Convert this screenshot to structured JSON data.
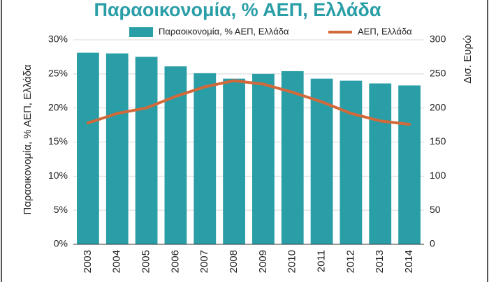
{
  "chart_data": {
    "type": "bar_line",
    "title": "Παραοικονομία, % ΑΕΠ, Ελλάδα",
    "y_label": "Παραοικονομία, % ΑΕΠ, Ελλάδα",
    "y2_label": "Δισ. Ευρώ",
    "categories": [
      "2003",
      "2004",
      "2005",
      "2006",
      "2007",
      "2008",
      "2009",
      "2010",
      "2011",
      "2012",
      "2013",
      "2014"
    ],
    "series": [
      {
        "name": "Παραοικονομία, % ΑΕΠ, Ελλάδα",
        "type": "bar",
        "color": "#2a9ea7",
        "values": [
          28.1,
          28.0,
          27.5,
          26.1,
          25.1,
          24.3,
          25.0,
          25.4,
          24.3,
          24.0,
          23.6,
          23.3
        ]
      },
      {
        "name": "ΑΕΠ, Ελλάδα",
        "type": "line",
        "axis": "y2",
        "color": "#d2693a",
        "values": [
          178,
          192,
          200,
          217,
          231,
          240,
          235,
          223,
          209,
          192,
          181,
          176
        ]
      }
    ],
    "ylim": [
      0,
      30
    ],
    "yticks": [
      {
        "value": 0,
        "label": "0%"
      },
      {
        "value": 5,
        "label": "5%"
      },
      {
        "value": 10,
        "label": "10%"
      },
      {
        "value": 15,
        "label": "15%"
      },
      {
        "value": 20,
        "label": "20%"
      },
      {
        "value": 25,
        "label": "25%"
      },
      {
        "value": 30,
        "label": "30%"
      }
    ],
    "y2lim": [
      0,
      300
    ],
    "y2ticks": [
      0,
      50,
      100,
      150,
      200,
      250,
      300
    ],
    "grid": true
  }
}
